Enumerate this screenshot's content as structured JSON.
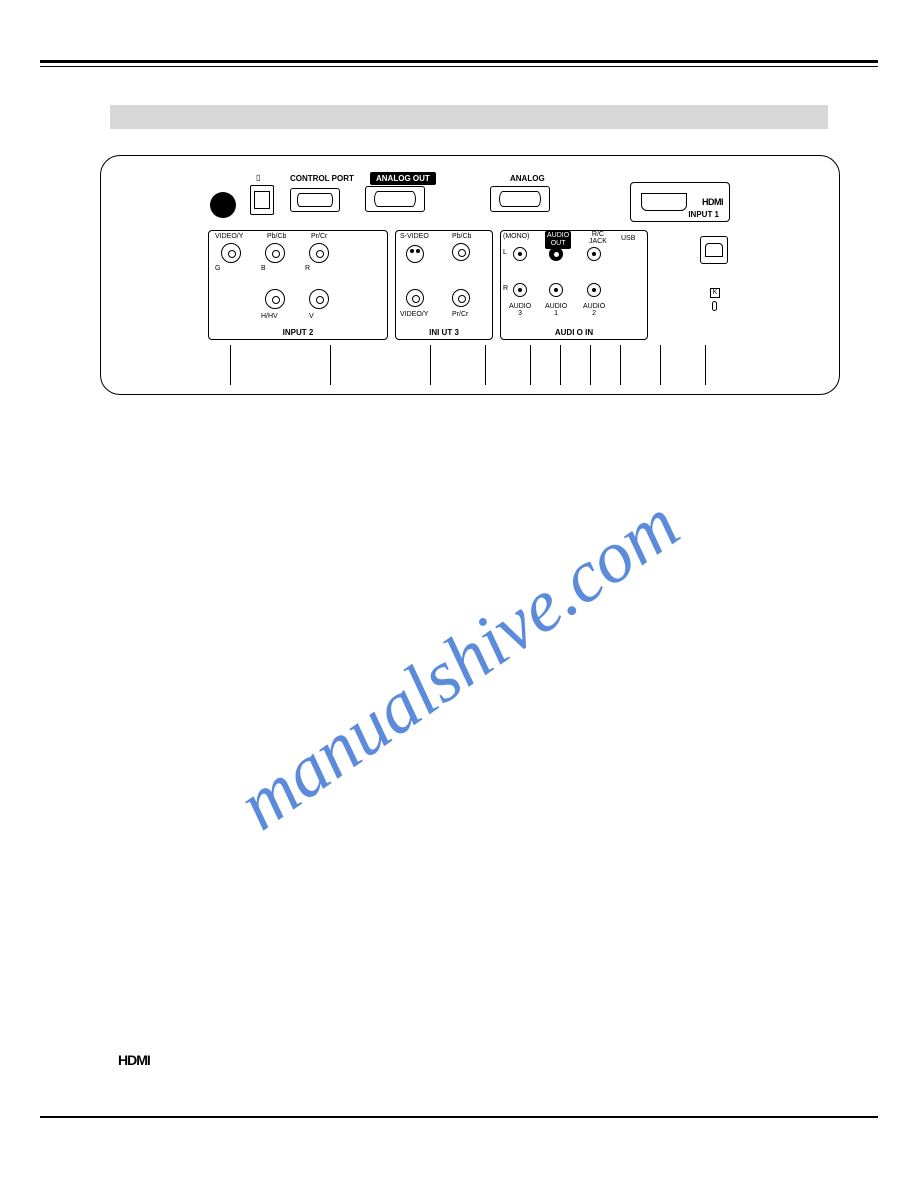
{
  "watermark": "manualshive.com",
  "top_row": {
    "control_port_label": "CONTROL PORT",
    "analog_out_label": "ANALOG OUT",
    "analog_label": "ANALOG",
    "hdmi_text": "HDMI",
    "input1_label": "INPUT 1"
  },
  "input2": {
    "group_label": "INPUT 2",
    "labels": {
      "video_y": "VIDEO/Y",
      "pbcb": "Pb/Cb",
      "prcr": "Pr/Cr",
      "g": "G",
      "b": "B",
      "r": "R",
      "hhv": "H/HV",
      "v": "V"
    }
  },
  "input3": {
    "group_label": "INPUT 3",
    "group_label_display": "INI UT 3",
    "labels": {
      "svideo": "S-VIDEO",
      "pbcb": "Pb/Cb",
      "video_y": "VIDEO/Y",
      "prcr": "Pr/Cr"
    }
  },
  "audio": {
    "group_label": "AUDIO IN",
    "group_label_display": "AUDI O IN",
    "labels": {
      "mono": "(MONO)",
      "l": "L",
      "r": "R",
      "audio_out": "AUDIO\nOUT",
      "rc_jack": "R/C\nJACK",
      "usb": "USB",
      "audio3": "AUDIO\n3",
      "audio1": "AUDIO\n1",
      "audio2": "AUDIO\n2"
    }
  },
  "kensington_label": "K",
  "hdmi_logo": "HDMI",
  "colors": {
    "watermark": "#4a7fd6",
    "section_bar": "#d8d8d8",
    "line": "#000000"
  },
  "callout_stubs_x": [
    230,
    330,
    430,
    485,
    530,
    560,
    590,
    620,
    660,
    705
  ]
}
